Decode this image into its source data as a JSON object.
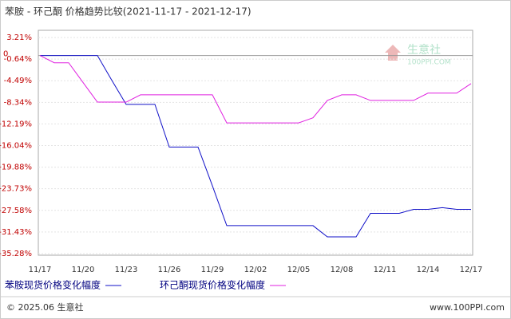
{
  "chart_data": {
    "type": "line",
    "title": "苯胺 - 环己酮 价格趋势比较(2021-11-17 - 2021-12-17)",
    "categories": [
      "11/17",
      null,
      null,
      "11/20",
      null,
      null,
      "11/23",
      null,
      null,
      "11/26",
      null,
      null,
      "11/29",
      null,
      null,
      "12/02",
      null,
      null,
      "12/05",
      null,
      null,
      "12/08",
      null,
      null,
      "12/11",
      null,
      null,
      "12/14",
      null,
      null,
      "12/17"
    ],
    "series": [
      {
        "name": "苯胺现货价格变化幅度",
        "color": "#1010c8",
        "values": [
          0,
          0,
          0,
          0,
          0,
          -4.4,
          -8.7,
          -8.7,
          -8.7,
          -16.3,
          -16.3,
          -16.3,
          -23.2,
          -30.3,
          -30.3,
          -30.3,
          -30.3,
          -30.3,
          -30.3,
          -30.3,
          -32.3,
          -32.3,
          -32.3,
          -28.1,
          -28.1,
          -28.1,
          -27.4,
          -27.4,
          -27.1,
          -27.4,
          -27.4
        ]
      },
      {
        "name": "环己酮现货价格变化幅度",
        "color": "#e020e0",
        "values": [
          0,
          -1.3,
          -1.3,
          -4.8,
          -8.3,
          -8.3,
          -8.3,
          -7.0,
          -7.0,
          -7.0,
          -7.0,
          -7.0,
          -7.0,
          -12.0,
          -12.0,
          -12.0,
          -12.0,
          -12.0,
          -12.0,
          -11.1,
          -8.0,
          -7.0,
          -7.0,
          -8.0,
          -8.0,
          -8.0,
          -8.0,
          -6.7,
          -6.7,
          -6.7,
          -5.0
        ]
      }
    ],
    "ylim": [
      -35.28,
      3.21
    ],
    "yticks": [
      {
        "value": 3.21,
        "label": "3.21%"
      },
      {
        "value": -0.64,
        "label": "-0.64%"
      },
      {
        "value": -4.49,
        "label": "-4.49%"
      },
      {
        "value": -8.34,
        "label": "-8.34%"
      },
      {
        "value": -12.19,
        "label": "-12.19%"
      },
      {
        "value": -16.04,
        "label": "-16.04%"
      },
      {
        "value": -19.88,
        "label": "-19.88%"
      },
      {
        "value": -23.73,
        "label": "-23.73%"
      },
      {
        "value": -27.58,
        "label": "-27.58%"
      },
      {
        "value": -31.43,
        "label": "-31.43%"
      },
      {
        "value": -35.28,
        "label": "-35.28%"
      }
    ],
    "zero_line": 0,
    "grid": true,
    "watermark": {
      "name": "生意社",
      "site": "100PPI.COM"
    },
    "footer": {
      "left": "© 2025.06 生意社",
      "right": "www.100PPI.com"
    }
  }
}
